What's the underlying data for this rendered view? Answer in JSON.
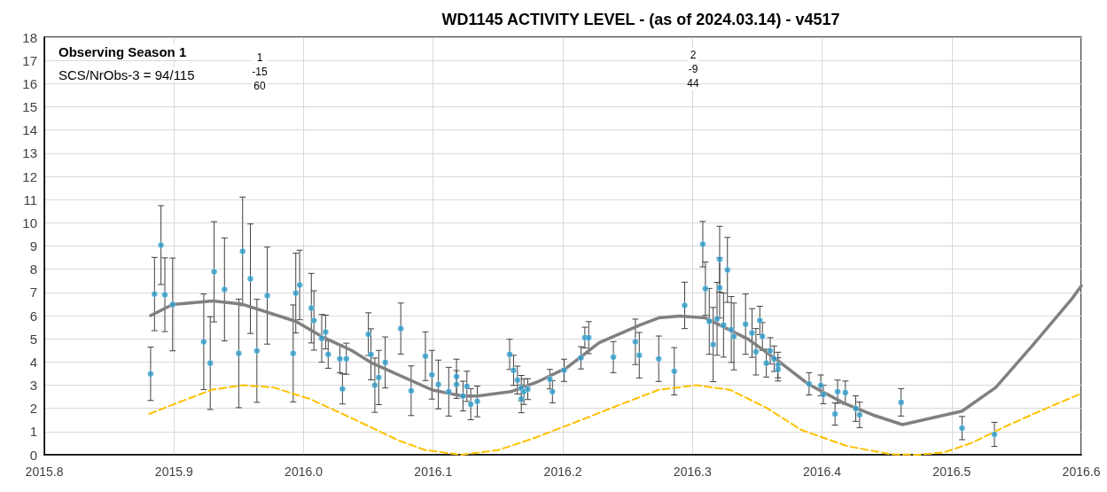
{
  "chart_data": {
    "type": "scatter",
    "title": "WD1145 ACTIVITY LEVEL - (as of 2024.03.14) - v4517",
    "annotations": [
      "Observing Season 1",
      "SCS/NrObs-3 = 94/115",
      "1\n-15\n60",
      "2\n-9\n44"
    ],
    "xlim": [
      2015.8,
      2016.6
    ],
    "xticks": [
      2015.8,
      2015.9,
      {
        "value": 2016,
        "label": "2016.0"
      },
      2016.1,
      2016.2,
      2016.3,
      2016.4,
      2016.5,
      2016.6
    ],
    "ylim": [
      0,
      18
    ],
    "yticks": [
      0,
      1,
      2,
      3,
      4,
      5,
      6,
      7,
      8,
      9,
      10,
      11,
      12,
      13,
      14,
      15,
      16,
      17,
      18
    ],
    "grid": true,
    "series": [
      {
        "color": "#2e9ccc",
        "marker": "circle",
        "x": [
          2015.882,
          2015.885,
          2015.89,
          2015.893,
          2015.899,
          2015.923,
          2015.928,
          2015.931,
          2015.939,
          2015.95,
          2015.953,
          2015.959,
          2015.964,
          2015.972,
          2015.992,
          2015.994,
          2015.997,
          2016.006,
          2016.008,
          2016.014,
          2016.017,
          2016.019,
          2016.028,
          2016.03,
          2016.033,
          2016.05,
          2016.052,
          2016.055,
          2016.058,
          2016.063,
          2016.075,
          2016.083,
          2016.094,
          2016.099,
          2016.104,
          2016.112,
          2016.118,
          2016.118,
          2016.123,
          2016.126,
          2016.129,
          2016.134,
          2016.159,
          2016.162,
          2016.165,
          2016.168,
          2016.168,
          2016.17,
          2016.173,
          2016.19,
          2016.192,
          2016.201,
          2016.214,
          2016.217,
          2016.22,
          2016.239,
          2016.256,
          2016.259,
          2016.274,
          2016.286,
          2016.294,
          2016.308,
          2016.31,
          2016.313,
          2016.316,
          2016.319,
          2016.321,
          2016.321,
          2016.324,
          2016.327,
          2016.33,
          2016.332,
          2016.341,
          2016.346,
          2016.349,
          2016.352,
          2016.354,
          2016.357,
          2016.36,
          2016.363,
          2016.366,
          2016.366,
          2016.39,
          2016.399,
          2016.401,
          2016.41,
          2016.412,
          2016.418,
          2016.426,
          2016.429,
          2016.461,
          2016.508,
          2016.533
        ],
        "values": [
          3.49,
          6.93,
          9.04,
          6.9,
          6.48,
          4.87,
          3.95,
          7.89,
          7.13,
          4.37,
          8.77,
          7.59,
          4.48,
          6.86,
          4.37,
          6.97,
          7.32,
          6.32,
          5.79,
          5.02,
          5.29,
          4.33,
          4.14,
          2.84,
          4.14,
          5.2,
          4.33,
          3.0,
          3.33,
          3.98,
          5.44,
          2.76,
          4.25,
          3.45,
          3.03,
          2.72,
          3.37,
          3.03,
          2.53,
          2.95,
          2.18,
          2.3,
          4.33,
          3.64,
          3.22,
          2.87,
          2.41,
          2.72,
          2.83,
          3.26,
          2.72,
          3.64,
          4.18,
          5.05,
          5.05,
          4.21,
          4.87,
          4.29,
          4.14,
          3.6,
          6.44,
          9.08,
          7.16,
          5.75,
          4.75,
          5.86,
          8.43,
          7.2,
          5.59,
          7.97,
          5.4,
          5.1,
          5.63,
          5.25,
          4.44,
          5.79,
          5.1,
          3.95,
          4.48,
          4.14,
          3.87,
          3.68,
          3.06,
          2.99,
          2.6,
          1.76,
          2.72,
          2.68,
          1.99,
          1.72,
          2.26,
          1.15,
          0.88
        ],
        "errors": [
          1.15,
          1.58,
          1.7,
          1.59,
          2.0,
          2.06,
          2.0,
          2.16,
          2.22,
          2.34,
          2.34,
          2.36,
          2.22,
          2.09,
          2.09,
          1.72,
          1.5,
          1.5,
          1.28,
          1.03,
          0.73,
          0.6,
          0.6,
          0.65,
          0.67,
          0.92,
          1.1,
          1.17,
          1.17,
          1.1,
          1.1,
          1.07,
          1.05,
          1.05,
          1.05,
          1.05,
          0.75,
          0.6,
          0.64,
          0.65,
          0.67,
          0.66,
          0.65,
          0.65,
          0.6,
          0.55,
          0.6,
          0.55,
          0.45,
          0.42,
          0.48,
          0.48,
          0.48,
          0.45,
          0.69,
          0.67,
          0.98,
          0.98,
          0.98,
          1.02,
          1.0,
          0.98,
          1.15,
          1.42,
          1.6,
          1.57,
          1.42,
          1.3,
          1.38,
          1.4,
          1.42,
          1.44,
          1.3,
          1.05,
          1.0,
          0.61,
          0.6,
          0.6,
          0.57,
          0.55,
          0.55,
          0.5,
          0.48,
          0.45,
          0.4,
          0.48,
          0.5,
          0.5,
          0.55,
          0.55,
          0.59,
          0.5,
          0.52
        ]
      },
      {
        "type": "line",
        "color": "#808080",
        "marker": "none",
        "line_style": "solid",
        "x": [
          2015.882,
          2015.899,
          2015.93,
          2015.952,
          2015.994,
          2016.014,
          2016.037,
          2016.053,
          2016.099,
          2016.122,
          2016.134,
          2016.16,
          2016.182,
          2016.203,
          2016.228,
          2016.26,
          2016.274,
          2016.29,
          2016.31,
          2016.343,
          2016.366,
          2016.389,
          2016.417,
          2016.439,
          2016.462,
          2016.508,
          2016.534,
          2016.563,
          2016.593,
          2016.6
        ],
        "values": [
          6.0,
          6.48,
          6.63,
          6.5,
          5.75,
          5.1,
          4.5,
          3.95,
          2.8,
          2.53,
          2.53,
          2.72,
          3.18,
          3.75,
          4.83,
          5.6,
          5.9,
          5.98,
          5.9,
          4.98,
          4.06,
          3.06,
          2.22,
          1.72,
          1.3,
          1.88,
          2.9,
          4.75,
          6.74,
          7.28
        ]
      },
      {
        "type": "line",
        "color": "#ffc000",
        "marker": "none",
        "line_style": "dashed",
        "x": [
          2015.881,
          2015.901,
          2015.929,
          2015.953,
          2015.977,
          2016.005,
          2016.039,
          2016.074,
          2016.094,
          2016.122,
          2016.15,
          2016.177,
          2016.212,
          2016.246,
          2016.274,
          2016.303,
          2016.329,
          2016.357,
          2016.384,
          2016.419,
          2016.453,
          2016.474,
          2016.494,
          2016.515,
          2016.543,
          2016.577,
          2016.6
        ],
        "values": [
          1.76,
          2.2,
          2.8,
          3.0,
          2.9,
          2.4,
          1.53,
          0.6,
          0.2,
          0,
          0.2,
          0.7,
          1.45,
          2.2,
          2.8,
          3.0,
          2.8,
          2.03,
          1.07,
          0.38,
          0.02,
          0,
          0.1,
          0.5,
          1.26,
          2.1,
          2.64
        ]
      }
    ]
  }
}
